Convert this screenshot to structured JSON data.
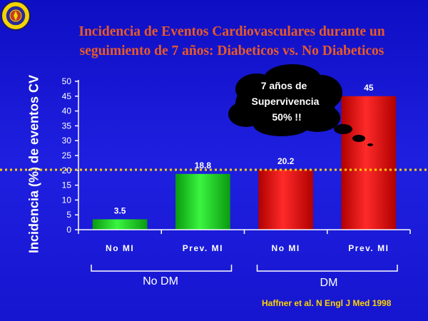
{
  "slide": {
    "title_line1": "Incidencia de Eventos Cardiovasculares durante un",
    "title_line2": "seguimiento de 7 años: Diabeticos vs. No Diabeticos",
    "source": "Haffner et al. N Engl J Med 1998",
    "logo_icon": "university-seal-icon"
  },
  "callout": {
    "line1": "7 años de",
    "line2": "Supervivencia",
    "line3": "50% !!"
  },
  "colors": {
    "background": "#1a1ad8",
    "title": "#e85a26",
    "source": "#ffd400",
    "dotted_line": "#ffd400",
    "bar_green": "#19e01e",
    "bar_red": "#ff1a1a"
  },
  "chart_data": {
    "type": "bar",
    "ylabel": "Incidencia (%) de eventos CV",
    "ylim": [
      0,
      50
    ],
    "yticks": [
      0,
      5,
      10,
      15,
      20,
      25,
      30,
      35,
      40,
      45,
      50
    ],
    "categories": [
      "No MI",
      "Prev. MI",
      "No MI",
      "Prev. MI"
    ],
    "values": [
      3.5,
      18.8,
      20.2,
      45
    ],
    "value_labels": [
      "3.5",
      "18.8",
      "20.2",
      "45"
    ],
    "bar_colors": [
      "#19e01e",
      "#19e01e",
      "#ff1a1a",
      "#ff1a1a"
    ],
    "groups": [
      {
        "label": "No DM",
        "bars": [
          0,
          1
        ]
      },
      {
        "label": "DM",
        "bars": [
          2,
          3
        ]
      }
    ],
    "reference_line": 20.2,
    "grid": false
  }
}
